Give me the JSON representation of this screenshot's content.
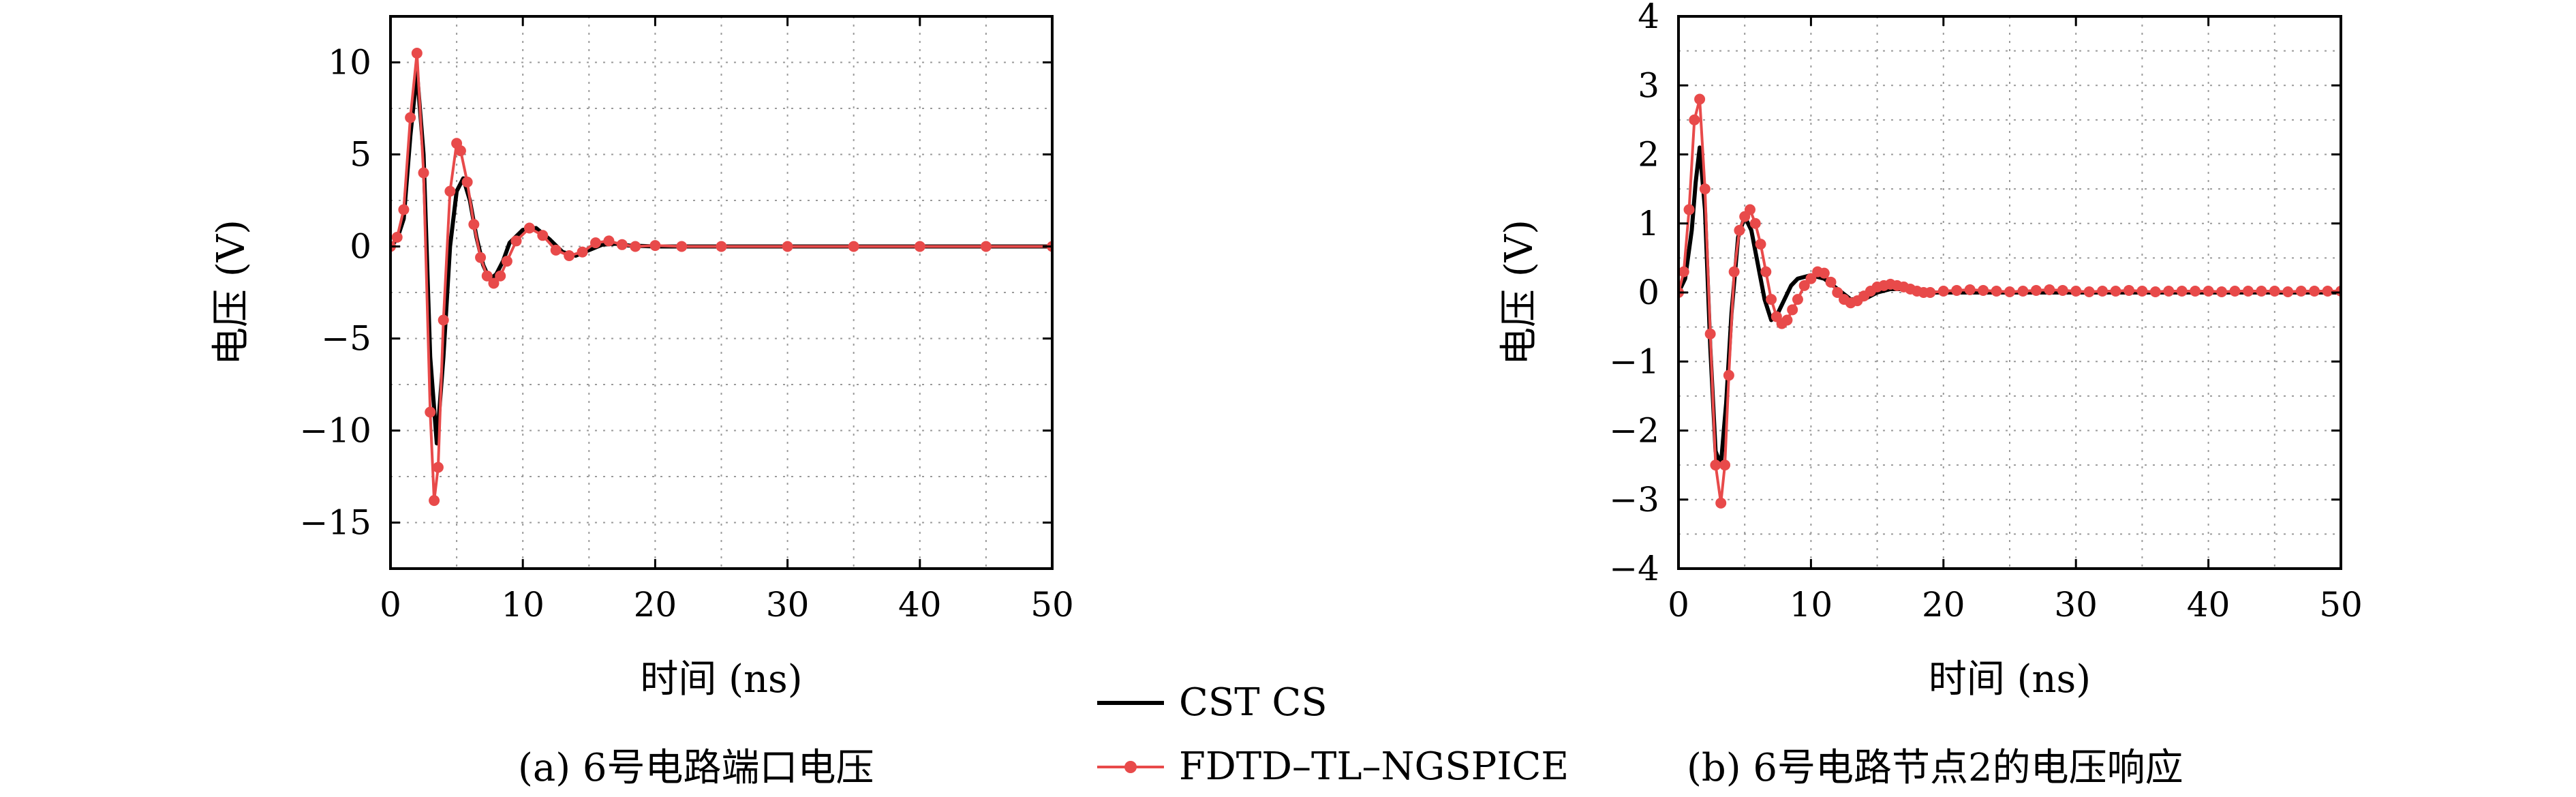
{
  "chart_data": [
    {
      "type": "line",
      "xlabel": "时间 (ns)",
      "ylabel": "电压 (V)",
      "caption": "(a) 6号电路端口电压",
      "xlim": [
        0,
        50
      ],
      "ylim": [
        -17.5,
        12.5
      ],
      "xticks": [
        0,
        10,
        20,
        30,
        40,
        50
      ],
      "xtick_labels": [
        "0",
        "10",
        "20",
        "30",
        "40",
        "50"
      ],
      "yticks": [
        10,
        5,
        0,
        -5,
        -10,
        -15
      ],
      "ytick_labels": [
        "10",
        "5",
        "0",
        "−5",
        "−10",
        "−15"
      ],
      "grid": true,
      "series": [
        {
          "name": "CST CS",
          "color": "#000000",
          "x": [
            0,
            0.5,
            1,
            1.5,
            2,
            2.5,
            3,
            3.5,
            4,
            4.5,
            5,
            5.5,
            6,
            6.5,
            7,
            7.5,
            8,
            8.5,
            9,
            10,
            11,
            12,
            13,
            14,
            15,
            16,
            17,
            18,
            20,
            22,
            25,
            30,
            35,
            40,
            45,
            50
          ],
          "y": [
            0,
            0.4,
            1.5,
            6,
            9.5,
            5,
            -6,
            -10.7,
            -6,
            0,
            3,
            3.7,
            2.5,
            0.5,
            -1,
            -1.8,
            -1.5,
            -0.8,
            0.2,
            0.9,
            1.0,
            0.4,
            -0.3,
            -0.5,
            -0.2,
            0.1,
            0.15,
            0.05,
            0,
            0,
            0,
            0,
            0,
            0,
            0,
            0
          ]
        },
        {
          "name": "FDTD–TL–NGSPICE",
          "color": "#e84a4a",
          "x": [
            0,
            0.5,
            1,
            1.5,
            2,
            2.5,
            3,
            3.3,
            3.6,
            4,
            4.5,
            5,
            5.3,
            5.8,
            6.3,
            6.8,
            7.3,
            7.8,
            8.3,
            8.8,
            9.5,
            10.5,
            11.5,
            12.5,
            13.5,
            14.5,
            15.5,
            16.5,
            17.5,
            18.5,
            20,
            22,
            25,
            30,
            35,
            40,
            45,
            50
          ],
          "y": [
            0,
            0.5,
            2,
            7,
            10.5,
            4,
            -9,
            -13.8,
            -12,
            -4,
            3,
            5.6,
            5.2,
            3.5,
            1.2,
            -0.6,
            -1.6,
            -2.0,
            -1.6,
            -0.8,
            0.3,
            1.0,
            0.6,
            -0.2,
            -0.5,
            -0.3,
            0.2,
            0.3,
            0.1,
            0,
            0.05,
            0,
            0,
            0,
            0,
            0,
            0,
            0
          ]
        }
      ]
    },
    {
      "type": "line",
      "xlabel": "时间 (ns)",
      "ylabel": "电压 (V)",
      "caption": "(b) 6号电路节点2的电压响应",
      "xlim": [
        0,
        50
      ],
      "ylim": [
        -4,
        4
      ],
      "xticks": [
        0,
        10,
        20,
        30,
        40,
        50
      ],
      "xtick_labels": [
        "0",
        "10",
        "20",
        "30",
        "40",
        "50"
      ],
      "yticks": [
        4,
        3,
        2,
        1,
        0,
        -1,
        -2,
        -3,
        -4
      ],
      "ytick_labels": [
        "4",
        "3",
        "2",
        "1",
        "0",
        "−1",
        "−2",
        "−3",
        "−4"
      ],
      "grid": true,
      "series": [
        {
          "name": "CST CS",
          "color": "#000000",
          "x": [
            0,
            0.5,
            1,
            1.3,
            1.6,
            2,
            2.4,
            2.8,
            3.2,
            3.6,
            4,
            4.5,
            5,
            5.5,
            6,
            6.5,
            7,
            7.5,
            8,
            8.5,
            9,
            10,
            11,
            12,
            13,
            14,
            15,
            16,
            17,
            18,
            20,
            22,
            25,
            30,
            35,
            40,
            45,
            50
          ],
          "y": [
            0,
            0.2,
            0.9,
            1.6,
            2.1,
            1.2,
            -0.8,
            -2.3,
            -2.5,
            -1.6,
            -0.3,
            0.8,
            1.1,
            0.9,
            0.4,
            -0.1,
            -0.4,
            -0.3,
            -0.1,
            0.1,
            0.2,
            0.25,
            0.2,
            0.05,
            -0.1,
            -0.1,
            0,
            0.05,
            0.05,
            0,
            0,
            0,
            0,
            0,
            0,
            0,
            0,
            0
          ]
        },
        {
          "name": "FDTD–TL–NGSPICE",
          "color": "#e84a4a",
          "x": [
            0,
            0.4,
            0.8,
            1.2,
            1.6,
            2,
            2.4,
            2.8,
            3.2,
            3.5,
            3.8,
            4.2,
            4.6,
            5,
            5.4,
            5.8,
            6.2,
            6.6,
            7,
            7.4,
            7.8,
            8.2,
            8.6,
            9,
            9.5,
            10,
            10.5,
            11,
            11.5,
            12,
            12.5,
            13,
            13.5,
            14,
            14.5,
            15,
            15.5,
            16,
            16.5,
            17,
            17.5,
            18,
            18.5,
            19,
            20,
            21,
            22,
            23,
            24,
            25,
            26,
            27,
            28,
            29,
            30,
            31,
            32,
            33,
            34,
            35,
            36,
            37,
            38,
            39,
            40,
            41,
            42,
            43,
            44,
            45,
            46,
            47,
            48,
            49,
            50
          ],
          "y": [
            0,
            0.3,
            1.2,
            2.5,
            2.8,
            1.5,
            -0.6,
            -2.5,
            -3.05,
            -2.5,
            -1.2,
            0.3,
            0.9,
            1.1,
            1.2,
            1.0,
            0.7,
            0.3,
            -0.1,
            -0.35,
            -0.45,
            -0.4,
            -0.25,
            -0.1,
            0.1,
            0.2,
            0.3,
            0.28,
            0.15,
            0,
            -0.1,
            -0.15,
            -0.12,
            -0.05,
            0.02,
            0.08,
            0.1,
            0.12,
            0.1,
            0.08,
            0.05,
            0.02,
            0,
            0,
            0.02,
            0.03,
            0.04,
            0.03,
            0.02,
            0.01,
            0.02,
            0.03,
            0.04,
            0.03,
            0.02,
            0.01,
            0.02,
            0.02,
            0.03,
            0.02,
            0.01,
            0.02,
            0.02,
            0.02,
            0.02,
            0.01,
            0.02,
            0.02,
            0.02,
            0.02,
            0.01,
            0.02,
            0.02,
            0.02,
            0.02
          ]
        }
      ]
    }
  ],
  "legend": {
    "items": [
      {
        "label": "CST CS",
        "color": "#000000",
        "marker": false
      },
      {
        "label": "FDTD–TL–NGSPICE",
        "color": "#e84a4a",
        "marker": true
      }
    ]
  }
}
